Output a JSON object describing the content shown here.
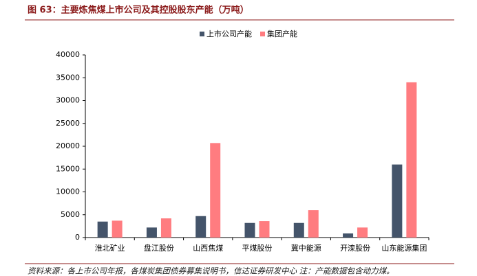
{
  "chart_data": {
    "type": "bar",
    "title": "图 63：主要炼焦煤上市公司及其控股股东产能（万吨）",
    "categories": [
      "淮北矿业",
      "盘江股份",
      "山西焦煤",
      "平煤股份",
      "冀中能源",
      "开滦股份",
      "山东能源集团"
    ],
    "series": [
      {
        "name": "上市公司产能",
        "color": "#44546a",
        "values": [
          3500,
          2200,
          4700,
          3200,
          3200,
          900,
          16000
        ]
      },
      {
        "name": "集团产能",
        "color": "#ff7c80",
        "values": [
          3700,
          4200,
          20700,
          3600,
          6000,
          2200,
          34000
        ]
      }
    ],
    "ylim": [
      0,
      40000
    ],
    "yticks": [
      0,
      5000,
      10000,
      15000,
      20000,
      25000,
      30000,
      35000,
      40000
    ],
    "source": "资料来源：各上市公司年报，各煤炭集团债券募集说明书，信达证券研发中心   注：产能数据包含动力煤。"
  }
}
